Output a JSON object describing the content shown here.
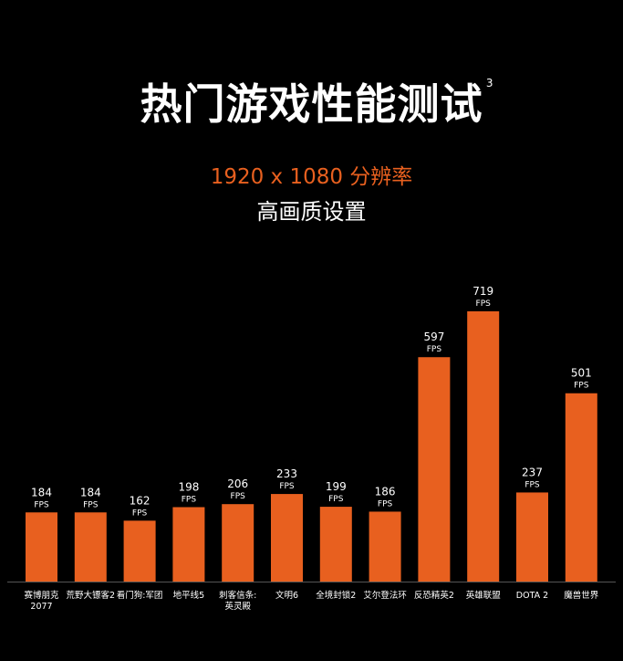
{
  "header": {
    "title": "热门游戏性能测试",
    "footnote": "3",
    "subtitle": "1920 x 1080 分辨率",
    "subtitle2": "高画质设置"
  },
  "colors": {
    "background": "#000000",
    "bar": "#e8601f",
    "accent_text": "#e8601f",
    "text": "#ffffff",
    "axis": "#555555"
  },
  "chart_data": {
    "type": "bar",
    "categories": [
      [
        "赛博朋克",
        "2077"
      ],
      [
        "荒野大镖客2"
      ],
      [
        "看门狗:军团"
      ],
      [
        "地平线5"
      ],
      [
        "刺客信条:",
        "英灵殿"
      ],
      [
        "文明6"
      ],
      [
        "全境封锁2"
      ],
      [
        "艾尔登法环"
      ],
      [
        "反恐精英2"
      ],
      [
        "英雄联盟"
      ],
      [
        "DOTA 2"
      ],
      [
        "魔兽世界"
      ]
    ],
    "values": [
      184,
      184,
      162,
      198,
      206,
      233,
      199,
      186,
      597,
      719,
      237,
      501
    ],
    "unit": "FPS",
    "ylim": [
      0,
      719
    ]
  }
}
